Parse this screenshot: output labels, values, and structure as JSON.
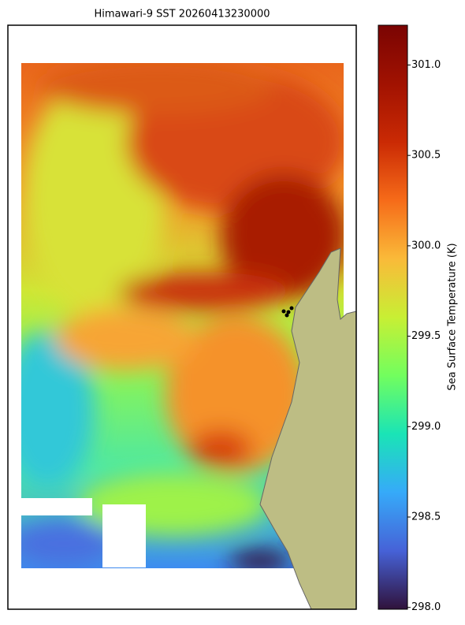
{
  "chart_data": {
    "type": "map",
    "title": "Himawari-9 SST 20260413230000",
    "colorbar_label": "Sea Surface Temperature (K)",
    "clim": [
      297.99,
      301.22
    ],
    "cticks": [
      {
        "value": 298,
        "label": "298.0"
      },
      {
        "value": 298.5,
        "label": "298.5"
      },
      {
        "value": 299,
        "label": "299.0"
      },
      {
        "value": 299.5,
        "label": "299.5"
      },
      {
        "value": 300,
        "label": "300.0"
      },
      {
        "value": 300.5,
        "label": "300.5"
      },
      {
        "value": 301,
        "label": "301.0"
      }
    ]
  }
}
